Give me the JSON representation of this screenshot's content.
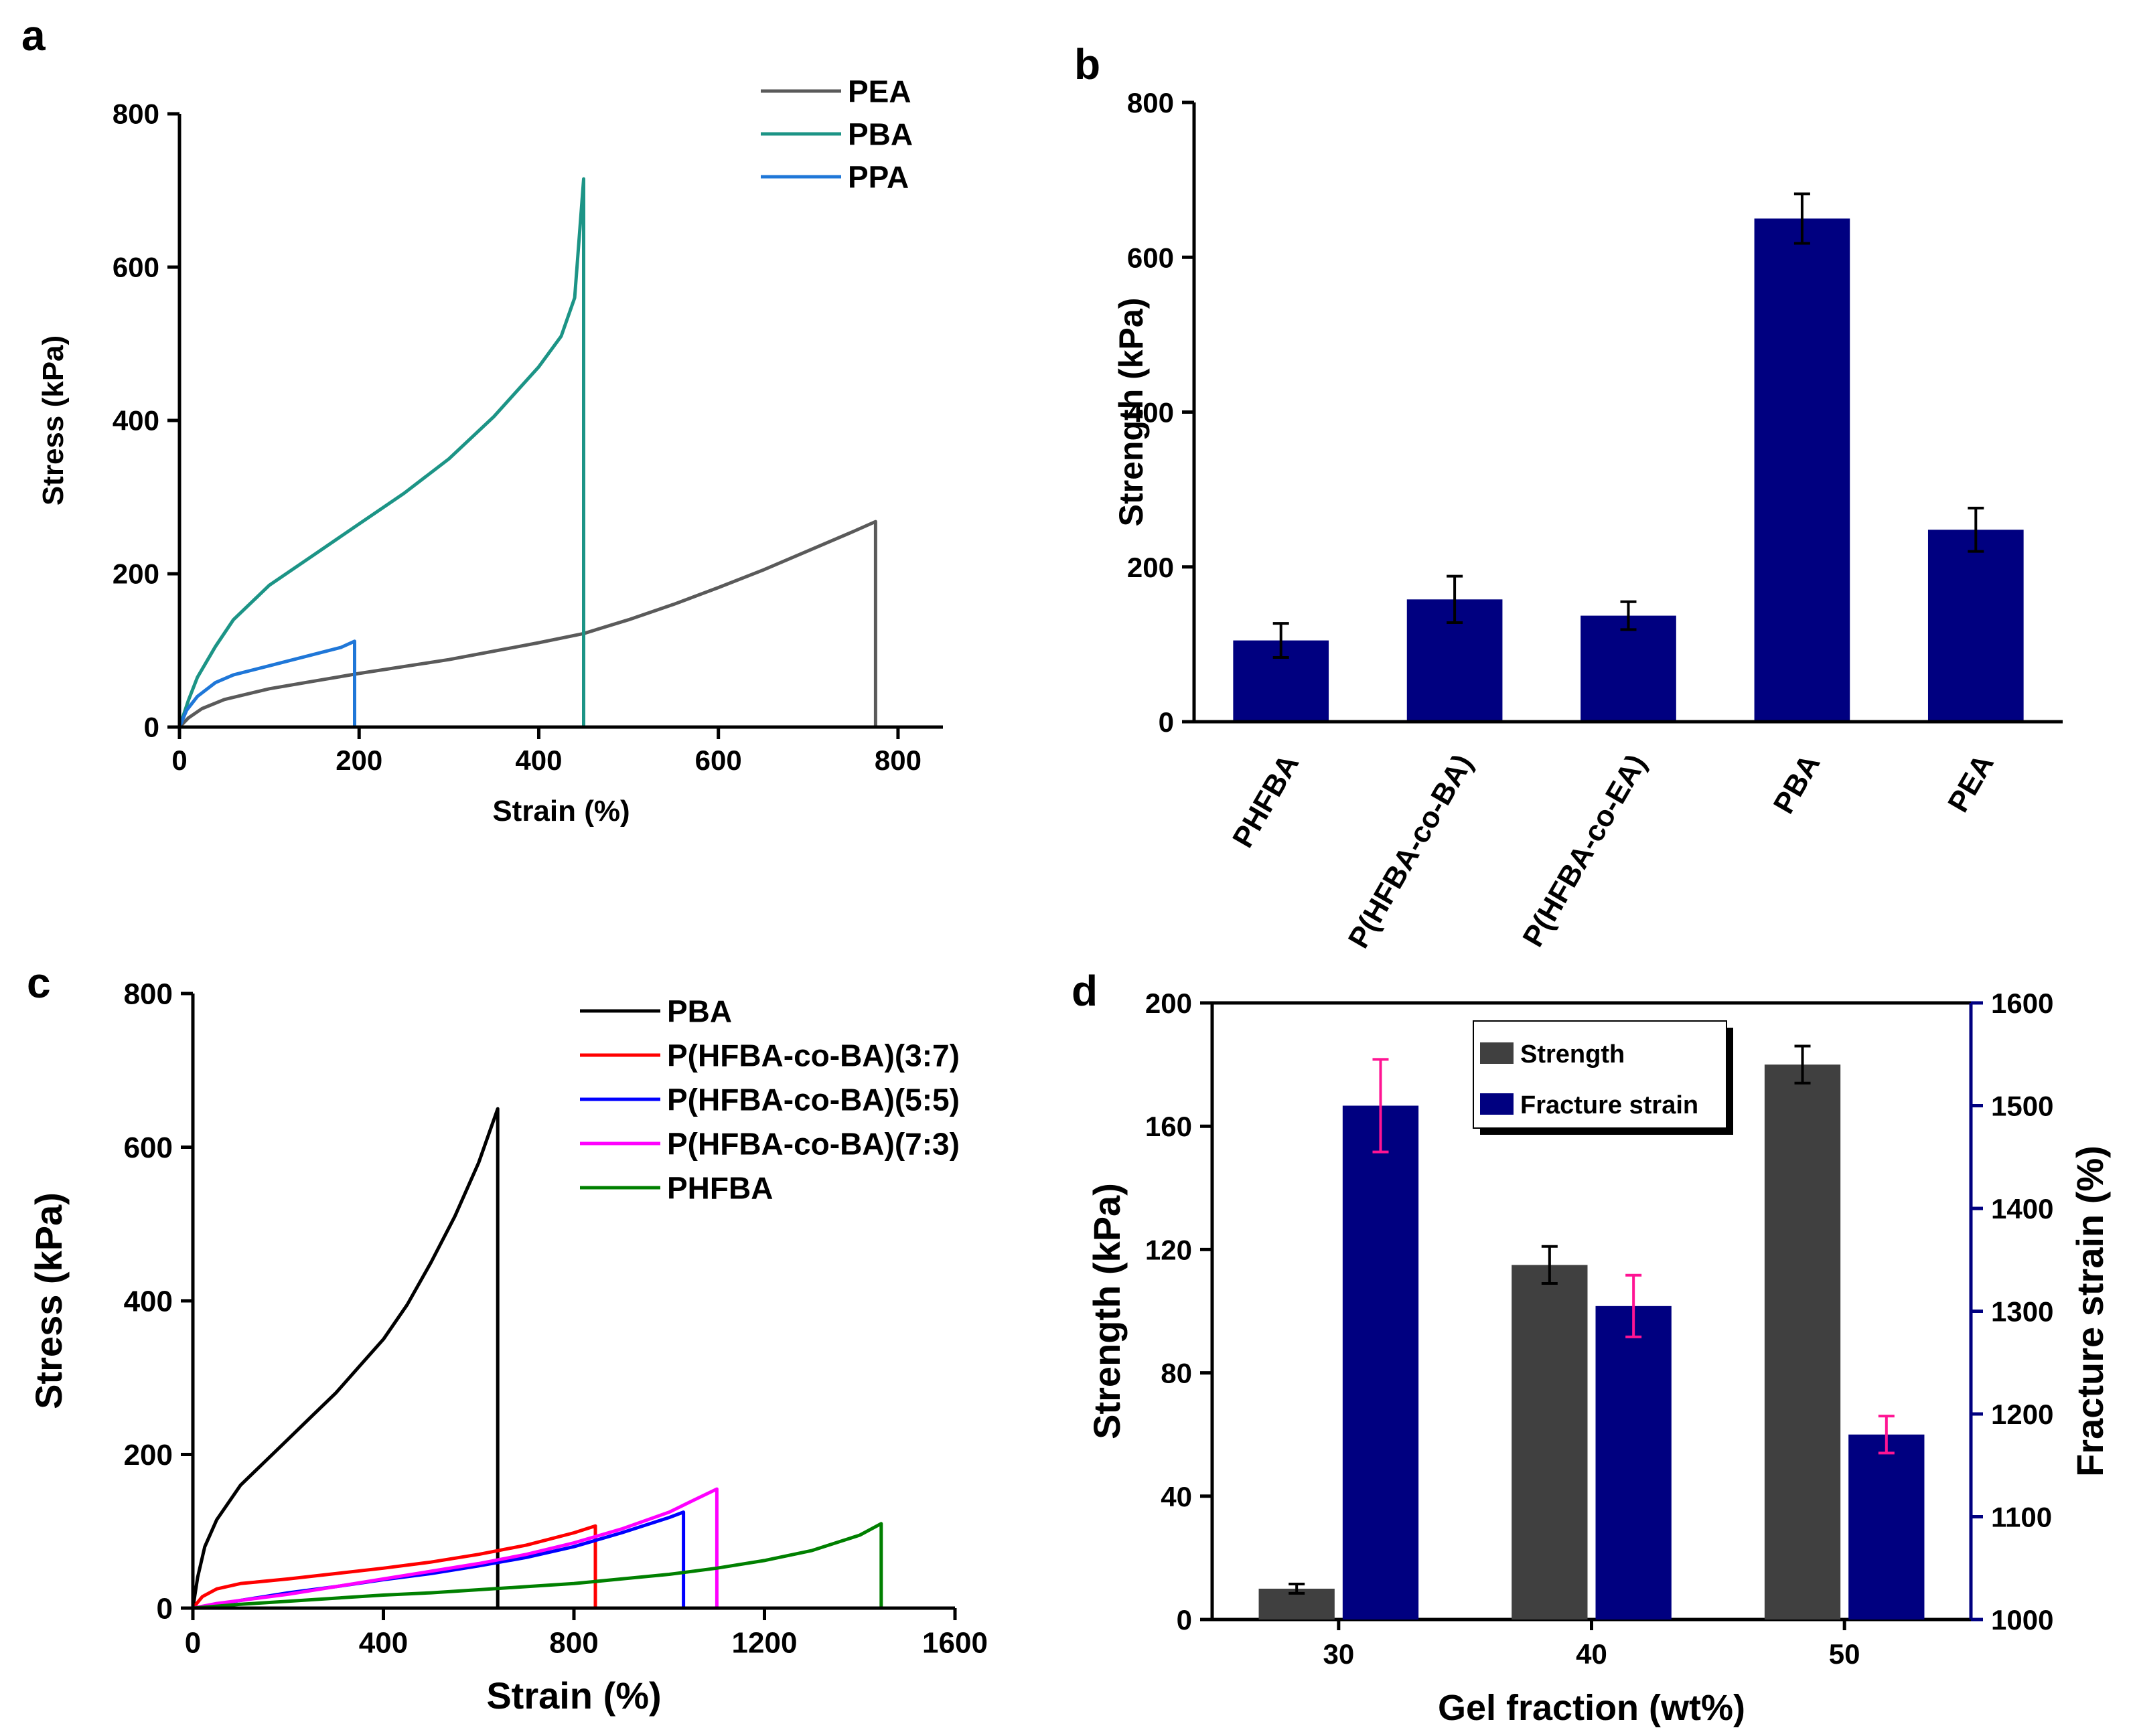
{
  "chart_data": [
    {
      "id": "a",
      "panel_label": "a",
      "type": "line",
      "xlabel": "Strain (%)",
      "ylabel": "Stress (kPa)",
      "xlim": [
        0,
        850
      ],
      "ylim": [
        0,
        800
      ],
      "xticks": [
        0,
        200,
        400,
        600,
        800
      ],
      "yticks": [
        0,
        200,
        400,
        600,
        800
      ],
      "legend_position": "top-right",
      "series": [
        {
          "name": "PEA",
          "color": "#5a5a5a",
          "break_x": 775,
          "points": [
            [
              0,
              0
            ],
            [
              10,
              12
            ],
            [
              25,
              24
            ],
            [
              50,
              36
            ],
            [
              100,
              50
            ],
            [
              150,
              60
            ],
            [
              200,
              70
            ],
            [
              300,
              88
            ],
            [
              400,
              110
            ],
            [
              450,
              122
            ],
            [
              500,
              140
            ],
            [
              550,
              160
            ],
            [
              600,
              182
            ],
            [
              650,
              205
            ],
            [
              700,
              230
            ],
            [
              750,
              255
            ],
            [
              775,
              268
            ]
          ]
        },
        {
          "name": "PBA",
          "color": "#1c9486",
          "break_x": 450,
          "points": [
            [
              0,
              0
            ],
            [
              10,
              35
            ],
            [
              20,
              65
            ],
            [
              40,
              105
            ],
            [
              60,
              140
            ],
            [
              100,
              185
            ],
            [
              150,
              225
            ],
            [
              200,
              265
            ],
            [
              250,
              305
            ],
            [
              300,
              350
            ],
            [
              350,
              405
            ],
            [
              400,
              470
            ],
            [
              425,
              510
            ],
            [
              440,
              560
            ],
            [
              450,
              715
            ]
          ]
        },
        {
          "name": "PPA",
          "color": "#1f77d8",
          "break_x": 195,
          "points": [
            [
              0,
              0
            ],
            [
              8,
              22
            ],
            [
              20,
              40
            ],
            [
              40,
              58
            ],
            [
              60,
              68
            ],
            [
              100,
              80
            ],
            [
              140,
              92
            ],
            [
              180,
              104
            ],
            [
              195,
              112
            ]
          ]
        }
      ]
    },
    {
      "id": "b",
      "panel_label": "b",
      "type": "bar",
      "ylabel": "Strength (kPa)",
      "ylim": [
        0,
        800
      ],
      "yticks": [
        0,
        200,
        400,
        600,
        800
      ],
      "bar_color": "#000080",
      "categories": [
        "PHFBA",
        "P(HFBA-co-BA)",
        "P(HFBA-co-EA)",
        "PBA",
        "PEA"
      ],
      "values": [
        105,
        158,
        137,
        650,
        248
      ],
      "errors": [
        22,
        30,
        18,
        32,
        28
      ]
    },
    {
      "id": "c",
      "panel_label": "c",
      "type": "line",
      "xlabel": "Strain (%)",
      "ylabel": "Stress (kPa)",
      "xlim": [
        0,
        1600
      ],
      "ylim": [
        0,
        800
      ],
      "xticks": [
        0,
        400,
        800,
        1200,
        1600
      ],
      "yticks": [
        0,
        200,
        400,
        600,
        800
      ],
      "legend_position": "top-right",
      "series": [
        {
          "name": "PBA",
          "color": "#000000",
          "break_x": 640,
          "points": [
            [
              0,
              0
            ],
            [
              10,
              40
            ],
            [
              25,
              80
            ],
            [
              50,
              115
            ],
            [
              100,
              160
            ],
            [
              150,
              190
            ],
            [
              200,
              220
            ],
            [
              250,
              250
            ],
            [
              300,
              280
            ],
            [
              350,
              315
            ],
            [
              400,
              350
            ],
            [
              450,
              395
            ],
            [
              500,
              450
            ],
            [
              550,
              510
            ],
            [
              600,
              580
            ],
            [
              640,
              650
            ]
          ]
        },
        {
          "name": "P(HFBA-co-BA)(3:7)",
          "color": "#ff0000",
          "break_x": 845,
          "points": [
            [
              0,
              0
            ],
            [
              20,
              15
            ],
            [
              50,
              25
            ],
            [
              100,
              32
            ],
            [
              200,
              38
            ],
            [
              300,
              45
            ],
            [
              400,
              52
            ],
            [
              500,
              60
            ],
            [
              600,
              70
            ],
            [
              700,
              82
            ],
            [
              800,
              98
            ],
            [
              845,
              107
            ]
          ]
        },
        {
          "name": "P(HFBA-co-BA)(5:5)",
          "color": "#0000ff",
          "break_x": 1030,
          "points": [
            [
              0,
              0
            ],
            [
              50,
              5
            ],
            [
              100,
              10
            ],
            [
              200,
              20
            ],
            [
              300,
              28
            ],
            [
              400,
              37
            ],
            [
              500,
              45
            ],
            [
              600,
              55
            ],
            [
              700,
              66
            ],
            [
              800,
              80
            ],
            [
              900,
              98
            ],
            [
              1000,
              118
            ],
            [
              1030,
              125
            ]
          ]
        },
        {
          "name": "P(HFBA-co-BA)(7:3)",
          "color": "#ff00ff",
          "break_x": 1100,
          "points": [
            [
              0,
              0
            ],
            [
              50,
              6
            ],
            [
              100,
              10
            ],
            [
              200,
              18
            ],
            [
              300,
              28
            ],
            [
              400,
              38
            ],
            [
              500,
              48
            ],
            [
              600,
              58
            ],
            [
              700,
              70
            ],
            [
              800,
              85
            ],
            [
              900,
              103
            ],
            [
              1000,
              125
            ],
            [
              1050,
              140
            ],
            [
              1100,
              155
            ]
          ]
        },
        {
          "name": "PHFBA",
          "color": "#008000",
          "break_x": 1445,
          "points": [
            [
              0,
              0
            ],
            [
              100,
              5
            ],
            [
              200,
              9
            ],
            [
              300,
              13
            ],
            [
              400,
              17
            ],
            [
              500,
              20
            ],
            [
              600,
              24
            ],
            [
              700,
              28
            ],
            [
              800,
              32
            ],
            [
              900,
              38
            ],
            [
              1000,
              44
            ],
            [
              1100,
              52
            ],
            [
              1200,
              62
            ],
            [
              1300,
              75
            ],
            [
              1400,
              95
            ],
            [
              1445,
              110
            ]
          ]
        }
      ]
    },
    {
      "id": "d",
      "panel_label": "d",
      "type": "bar",
      "xlabel": "Gel fraction (wt%)",
      "ylabel": "Strength (kPa)",
      "y2label": "Fracture strain (%)",
      "categories": [
        "30",
        "40",
        "50"
      ],
      "ylim": [
        0,
        200
      ],
      "yticks": [
        0,
        40,
        80,
        120,
        160,
        200
      ],
      "y2lim": [
        1000,
        1600
      ],
      "y2ticks": [
        1000,
        1100,
        1200,
        1300,
        1400,
        1500,
        1600
      ],
      "legend_position": "top-center",
      "series": [
        {
          "name": "Strength",
          "axis": "left",
          "color": "#404040",
          "error_color": "#000000",
          "values": [
            10,
            115,
            180
          ],
          "errors": [
            1.5,
            6,
            6
          ]
        },
        {
          "name": "Fracture strain",
          "axis": "right",
          "color": "#000080",
          "error_color": "#ff1493",
          "values": [
            1500,
            1305,
            1180
          ],
          "errors": [
            45,
            30,
            18
          ]
        }
      ]
    }
  ]
}
